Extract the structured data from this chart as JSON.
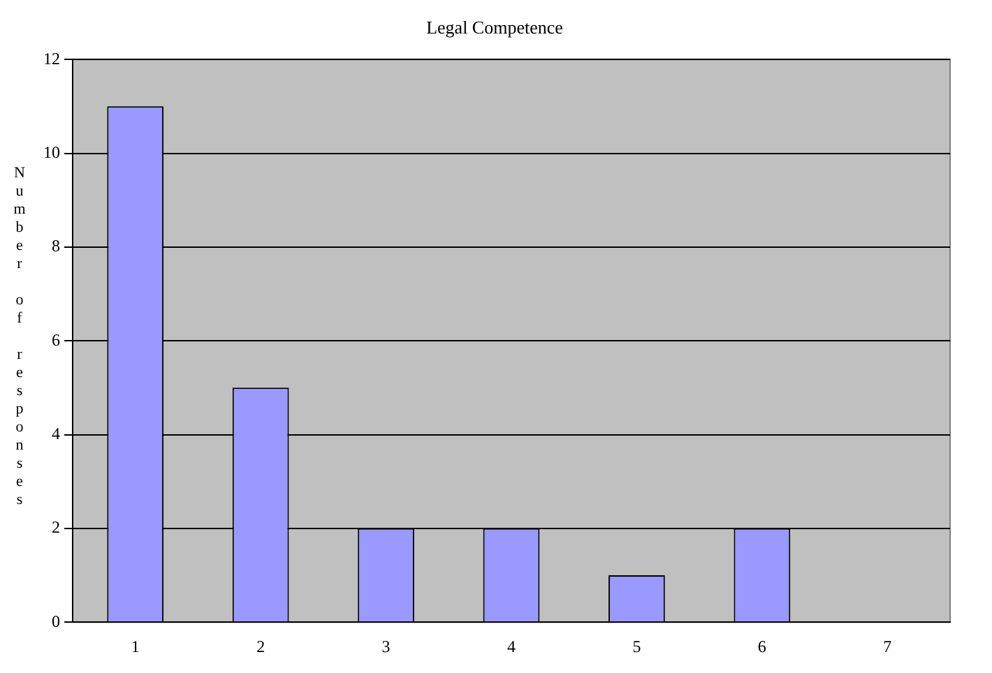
{
  "chart_data": {
    "type": "bar",
    "title": "Legal Competence",
    "ylabel": "Number of responses",
    "categories": [
      "1",
      "2",
      "3",
      "4",
      "5",
      "6",
      "7"
    ],
    "values": [
      11,
      5,
      2,
      2,
      1,
      2,
      0
    ],
    "color": "#9999ff",
    "ylim": [
      0,
      12
    ],
    "yticks": [
      0,
      2,
      4,
      6,
      8,
      10,
      12
    ],
    "grid": "y",
    "legend": false
  }
}
